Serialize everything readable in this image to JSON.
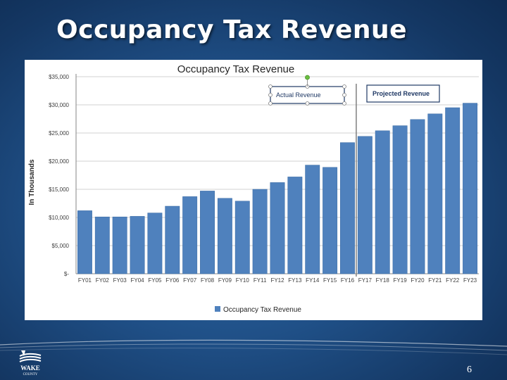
{
  "slide": {
    "title": "Occupancy Tax Revenue",
    "page_number": "6",
    "logo_text": "WAKE COUNTY"
  },
  "colors": {
    "bar": "#4f81bd",
    "bar_edge": "#3a6aa3",
    "grid": "#d0d0d0",
    "divider": "#7f7f7f"
  },
  "chart_data": {
    "type": "bar",
    "title": "Occupancy Tax Revenue",
    "ylabel": "In Thousands",
    "xlabel": "",
    "categories": [
      "FY01",
      "FY02",
      "FY03",
      "FY04",
      "FY05",
      "FY06",
      "FY07",
      "FY08",
      "FY09",
      "FY10",
      "FY11",
      "FY12",
      "FY13",
      "FY14",
      "FY15",
      "FY16",
      "FY17",
      "FY18",
      "FY19",
      "FY20",
      "FY21",
      "FY22",
      "FY23"
    ],
    "series": [
      {
        "name": "Occupancy Tax Revenue",
        "values": [
          11200,
          10100,
          10100,
          10200,
          10800,
          12000,
          13700,
          14700,
          13400,
          12900,
          15000,
          16200,
          17200,
          19300,
          18900,
          23300,
          24400,
          25400,
          26300,
          27400,
          28400,
          29500,
          30300
        ]
      }
    ],
    "ylim": [
      0,
      35000
    ],
    "yticks": [
      0,
      5000,
      10000,
      15000,
      20000,
      25000,
      30000,
      35000
    ],
    "ytick_labels": [
      "$-",
      "$5,000",
      "$10,000",
      "$15,000",
      "$20,000",
      "$25,000",
      "$30,000",
      "$35,000"
    ],
    "annotations": [
      {
        "text": "Actual Revenue"
      },
      {
        "text": "Projected Revenue"
      }
    ],
    "projection_starts_after": "FY16",
    "legend": {
      "position": "bottom",
      "label": "Occupancy Tax Revenue"
    },
    "grid": true
  }
}
